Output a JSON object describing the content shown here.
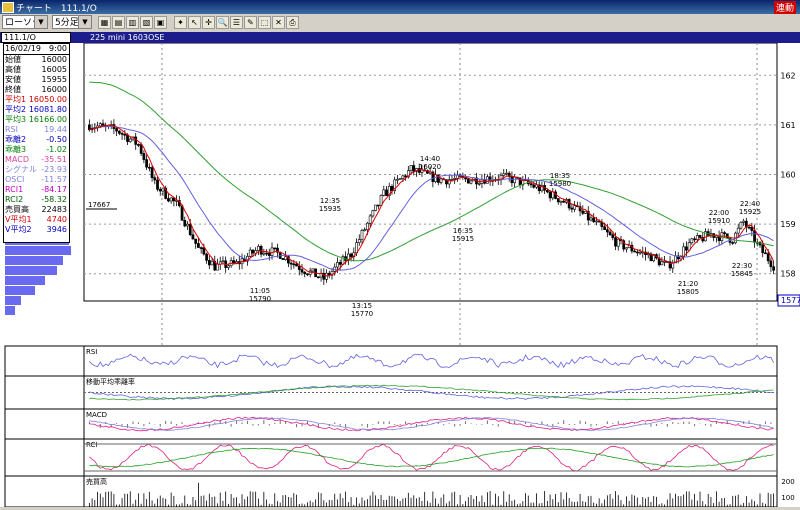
{
  "window": {
    "title": "チャート　111.1/O",
    "badge": "連動"
  },
  "toolbar": {
    "chart_type": "ローソク",
    "interval": "5分足",
    "buttons": [
      "chart-style-icon",
      "chart-compare-icon",
      "chart-indicator-icon",
      "chart-volume-icon",
      "chart-table-icon",
      "candle-icon",
      "cursor-icon",
      "crosshair-icon",
      "zoom-icon",
      "list-icon",
      "pencil-icon",
      "select-icon",
      "delete-icon",
      "print-icon"
    ]
  },
  "infobar": {
    "symbol": "111.1/O",
    "instrument": "225 mini 1603",
    "exchange": "OSE"
  },
  "panel": {
    "date": "16/02/19",
    "time": "9:00",
    "rows": [
      {
        "label": "始値",
        "value": "16000",
        "color": "black"
      },
      {
        "label": "高値",
        "value": "16005",
        "color": "black"
      },
      {
        "label": "安値",
        "value": "15955",
        "color": "black"
      },
      {
        "label": "終値",
        "value": "16000",
        "color": "black"
      },
      {
        "label": "平均1",
        "value": "16050.00",
        "color": "red"
      },
      {
        "label": "平均2",
        "value": "16081.80",
        "color": "blue"
      },
      {
        "label": "平均3",
        "value": "16166.00",
        "color": "green"
      },
      {
        "label": "RSI",
        "value": "19.44",
        "color": "lav"
      },
      {
        "label": "乖離2",
        "value": "-0.50",
        "color": "blue"
      },
      {
        "label": "乖離3",
        "value": "-1.02",
        "color": "green"
      },
      {
        "label": "MACD",
        "value": "-35.51",
        "color": "pink"
      },
      {
        "label": "シグナル",
        "value": "-23.93",
        "color": "lav"
      },
      {
        "label": "OSCI",
        "value": "-11.57",
        "color": "lav"
      },
      {
        "label": "RCI1",
        "value": "-84.17",
        "color": "mag"
      },
      {
        "label": "RCI2",
        "value": "-58.32",
        "color": "dkgreen"
      },
      {
        "label": "売買高",
        "value": "22483",
        "color": "black"
      },
      {
        "label": "V平均1",
        "value": "4740",
        "color": "red"
      },
      {
        "label": "V平均2",
        "value": "3946",
        "color": "blue"
      }
    ]
  },
  "chart_data": {
    "type": "candlestick",
    "x_unit": "5-minute bars",
    "y_axis": {
      "ticks": [
        15800,
        15900,
        16000,
        16100,
        16200
      ],
      "tick_labels": [
        "158",
        "159",
        "160",
        "161",
        "162"
      ],
      "ylim": [
        15745,
        16265
      ]
    },
    "ma_labels": [
      "平均1",
      "平均2",
      "平均3"
    ],
    "volume_profile_marker": "17667",
    "current_price_tag": "1577",
    "extremum_labels": [
      {
        "time": "11:05",
        "price": "15790",
        "pos": "below"
      },
      {
        "time": "12:35",
        "price": "15935",
        "pos": "above"
      },
      {
        "time": "13:15",
        "price": "15770",
        "pos": "below"
      },
      {
        "time": "14:40",
        "price": "16020",
        "pos": "above"
      },
      {
        "time": "16:35",
        "price": "15915",
        "pos": "below"
      },
      {
        "time": "18:35",
        "price": "15980",
        "pos": "above"
      },
      {
        "time": "21:20",
        "price": "15805",
        "pos": "below"
      },
      {
        "time": "22:00",
        "price": "15910",
        "pos": "above"
      },
      {
        "time": "22:40",
        "price": "15925",
        "pos": "above"
      },
      {
        "time": "22:30",
        "price": "15845",
        "pos": "below"
      }
    ],
    "sub_panels": [
      "RSI",
      "移動平均乖離率",
      "MACD",
      "RCI",
      "売買高"
    ],
    "volume_axis_labels": [
      "200",
      "100"
    ]
  },
  "colors": {
    "ma1": "#e00000",
    "ma2": "#6060e0",
    "ma3": "#30a030",
    "rci1": "#e02080",
    "rci2": "#20a020",
    "rsi": "#6060e0",
    "macd": "#e02080",
    "signal": "#8080e0",
    "osc": "#707070"
  }
}
